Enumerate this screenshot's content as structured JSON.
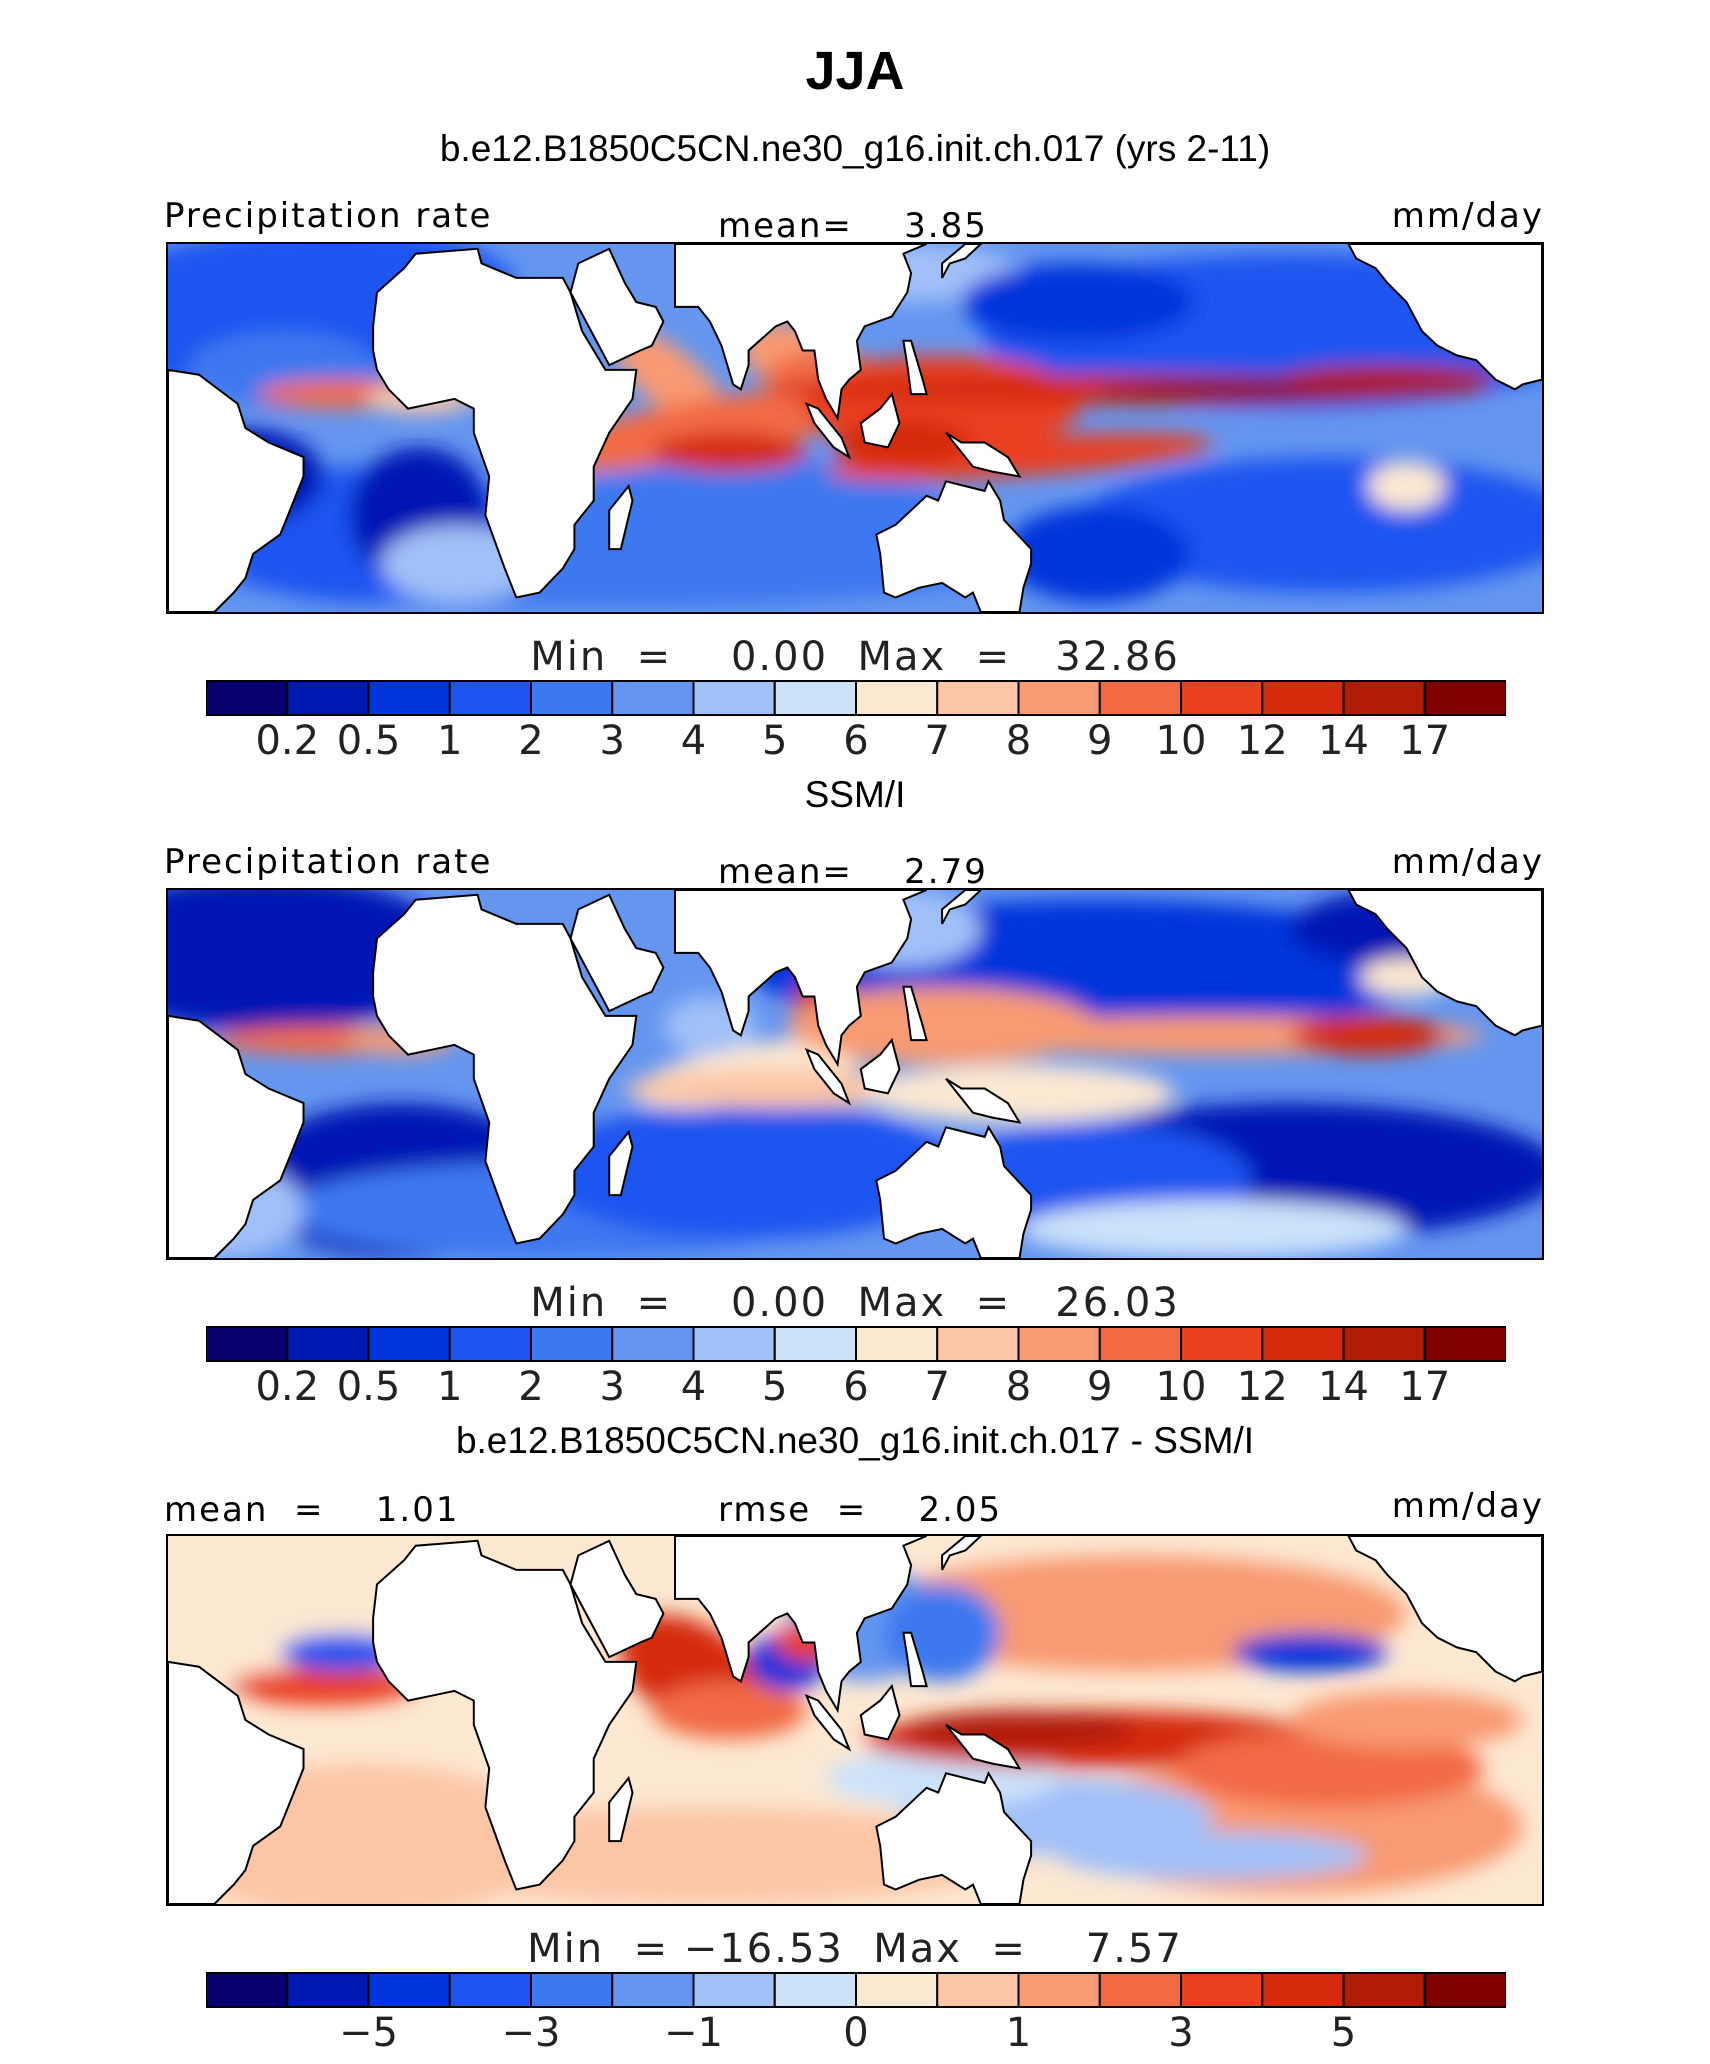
{
  "title": "JJA",
  "colors": {
    "palette": [
      "#08006e",
      "#0018b4",
      "#0034dc",
      "#1e54f0",
      "#3c78f0",
      "#6496f0",
      "#a0c0f8",
      "#cce2fa",
      "#fde8d2",
      "#fcc6a6",
      "#f89a72",
      "#f26a44",
      "#ea4020",
      "#d52a0c",
      "#b01c08",
      "#800000"
    ],
    "land": "#ffffff",
    "ocean_low": "#0034dc",
    "ocean_mid": "#a0c0f8",
    "ocean_high": "#ea4020"
  },
  "chart_data": [
    {
      "type": "heatmap",
      "title": "b.e12.B1850C5CN.ne30_g16.init.ch.017 (yrs 2-11)",
      "left_label": "Precipitation rate",
      "center_label": "mean=    3.85",
      "right_label": "mm/day",
      "mean": 3.85,
      "min": 0.0,
      "max": 32.86,
      "minmax_text": "Min  =    0.00  Max  =   32.86",
      "colorbar_levels": [
        "0.2",
        "0.5",
        "1",
        "2",
        "3",
        "4",
        "5",
        "6",
        "7",
        "8",
        "9",
        "10",
        "12",
        "14",
        "17"
      ],
      "colorbar_labels": [
        "0.2",
        "0.5",
        "1",
        "2",
        "3",
        "4",
        "5",
        "6",
        "7",
        "8",
        "9",
        "10",
        "12",
        "14",
        "17"
      ],
      "field": "model_precip"
    },
    {
      "type": "heatmap",
      "title": "SSM/I",
      "left_label": "Precipitation rate",
      "center_label": "mean=    2.79",
      "right_label": "mm/day",
      "mean": 2.79,
      "min": 0.0,
      "max": 26.03,
      "minmax_text": "Min  =    0.00  Max  =   26.03",
      "colorbar_levels": [
        "0.2",
        "0.5",
        "1",
        "2",
        "3",
        "4",
        "5",
        "6",
        "7",
        "8",
        "9",
        "10",
        "12",
        "14",
        "17"
      ],
      "colorbar_labels": [
        "0.2",
        "0.5",
        "1",
        "2",
        "3",
        "4",
        "5",
        "6",
        "7",
        "8",
        "9",
        "10",
        "12",
        "14",
        "17"
      ],
      "field": "obs_precip"
    },
    {
      "type": "heatmap",
      "title": "b.e12.B1850C5CN.ne30_g16.init.ch.017 - SSM/I",
      "left_label": "mean  =    1.01",
      "center_label": "rmse  =    2.05",
      "right_label": "mm/day",
      "mean": 1.01,
      "rmse": 2.05,
      "min": -16.53,
      "max": 7.57,
      "minmax_text": "Min  = −16.53  Max  =    7.57",
      "colorbar_levels": [
        "-6",
        "-5",
        "-4",
        "-3",
        "-2",
        "-1",
        "-0.5",
        "0",
        "0.5",
        "1",
        "2",
        "3",
        "4",
        "5",
        "6"
      ],
      "colorbar_labels": [
        "−5",
        "−3",
        "−1",
        "0",
        "1",
        "3",
        "5"
      ],
      "colorbar_label_slots": [
        1,
        3,
        5,
        7,
        9,
        11,
        13
      ],
      "field": "difference"
    }
  ]
}
